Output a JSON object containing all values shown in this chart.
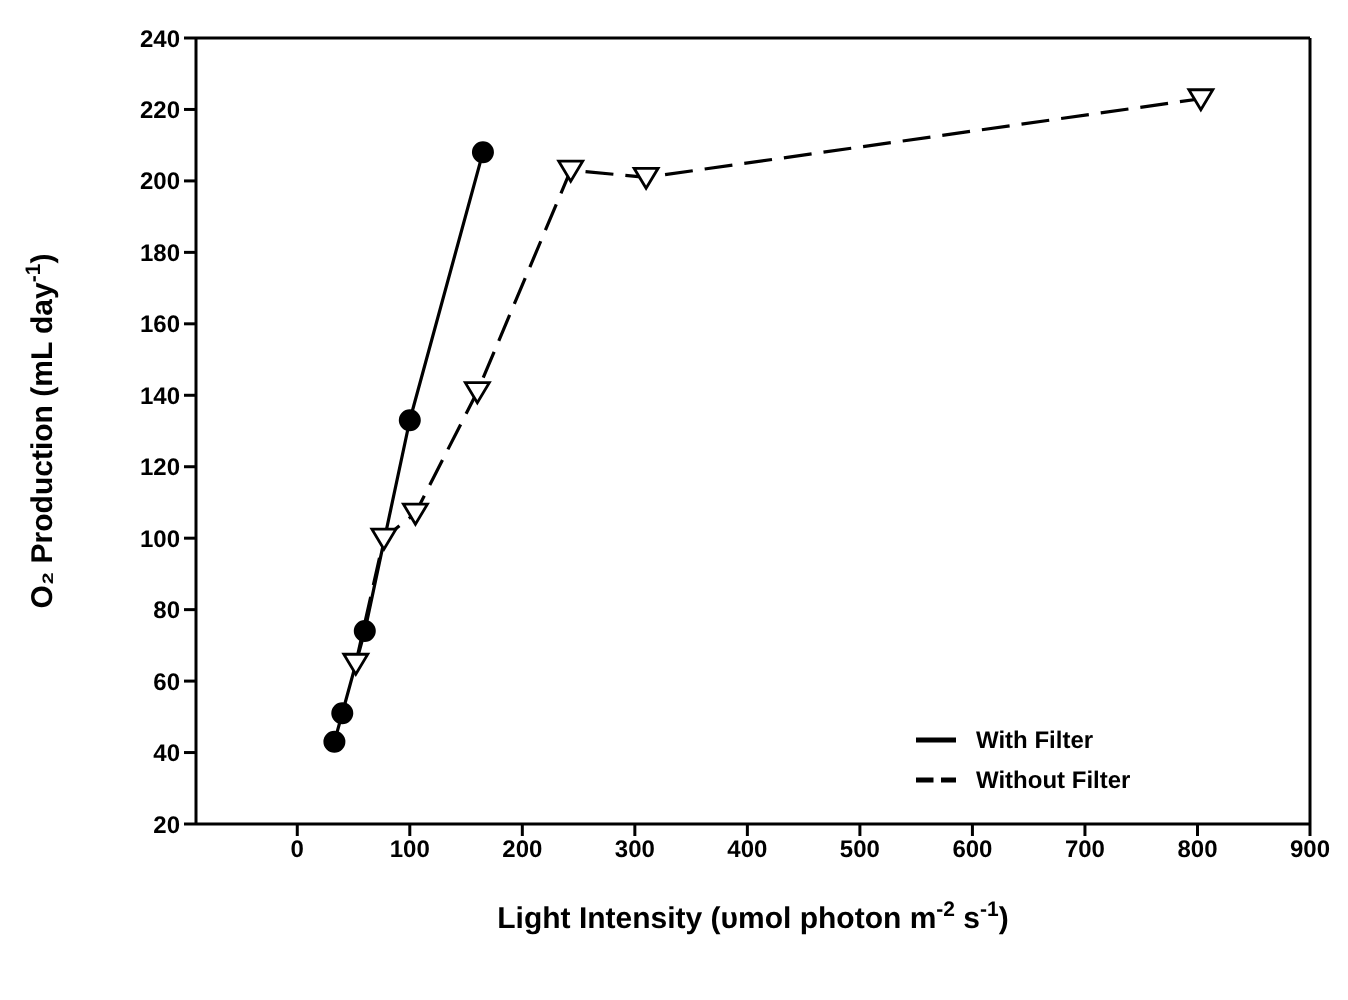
{
  "chart_data": {
    "type": "line",
    "xlabel": "Light Intensity (υmol photon m$^{-2}$ s$^{-1}$)",
    "ylabel": "O₂ Production (mL day$^{-1}$)",
    "xlim": [
      -90,
      900
    ],
    "xticks": [
      0,
      100,
      200,
      300,
      400,
      500,
      600,
      700,
      800,
      900
    ],
    "ylim": [
      20,
      240
    ],
    "yticks": [
      20,
      40,
      60,
      80,
      100,
      120,
      140,
      160,
      180,
      200,
      220,
      240
    ],
    "grid": false,
    "legend": "bottom right",
    "series": [
      {
        "name": "With Filter",
        "color": "#000000",
        "marker": "circle",
        "line_style": "solid",
        "x": [
          33,
          40,
          60,
          100,
          165
        ],
        "values": [
          43,
          51,
          74,
          133,
          208
        ]
      },
      {
        "name": "Without Filter",
        "color": "#000000",
        "marker": "triangle",
        "line_style": "dashed",
        "x": [
          52,
          77,
          105,
          160,
          243,
          310,
          803
        ],
        "values": [
          65,
          100,
          107,
          141,
          203,
          201,
          223
        ]
      }
    ]
  }
}
